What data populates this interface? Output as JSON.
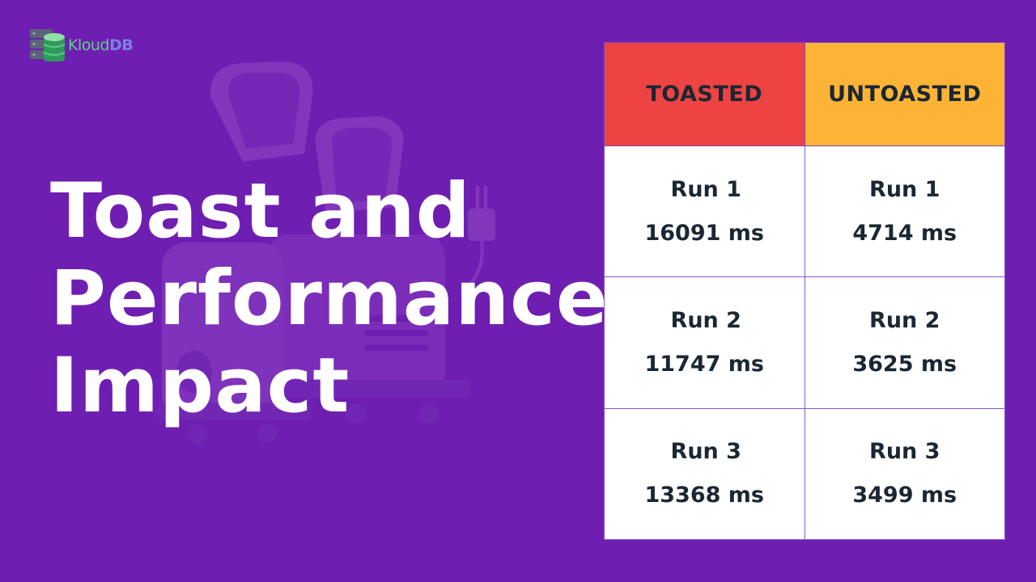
{
  "logo": {
    "brand_prefix": "Kloud",
    "brand_suffix": "DB",
    "icon": "database-server-icon"
  },
  "title_lines": [
    "Toast and",
    "Performance",
    "Impact"
  ],
  "illustration": {
    "icon": "toaster-with-toast-illustration"
  },
  "table": {
    "headers": [
      "TOASTED",
      "UNTOASTED"
    ],
    "header_colors": [
      "#ee4343",
      "#fdb335"
    ],
    "rows": [
      {
        "toasted": {
          "run": "Run 1",
          "time": "16091 ms"
        },
        "untoasted": {
          "run": "Run 1",
          "time": "4714 ms"
        }
      },
      {
        "toasted": {
          "run": "Run 2",
          "time": "11747 ms"
        },
        "untoasted": {
          "run": "Run 2",
          "time": "3625 ms"
        }
      },
      {
        "toasted": {
          "run": "Run 3",
          "time": "13368 ms"
        },
        "untoasted": {
          "run": "Run 3",
          "time": "3499 ms"
        }
      }
    ]
  },
  "colors": {
    "background": "#6e1fb1",
    "title": "#ffffff",
    "cell_text": "#1b2733"
  }
}
